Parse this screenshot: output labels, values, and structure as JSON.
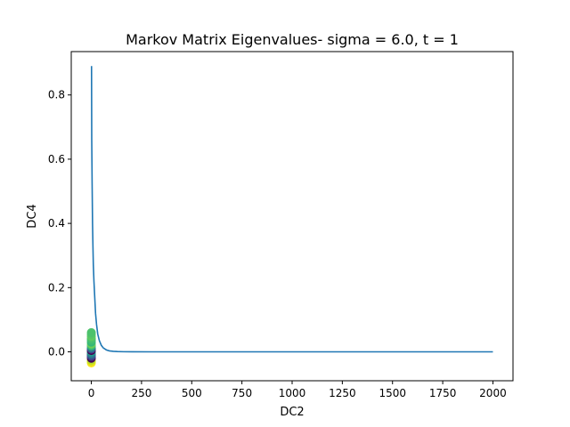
{
  "chart_data": {
    "type": "line",
    "title": "Markov Matrix Eigenvalues-  sigma = 6.0, t = 1",
    "xlabel": "DC2",
    "ylabel": "DC4",
    "xlim": [
      -100,
      2100
    ],
    "ylim": [
      -0.09,
      0.935
    ],
    "x_ticks": [
      0,
      250,
      500,
      750,
      1000,
      1250,
      1500,
      1750,
      2000
    ],
    "x_tick_labels": [
      "0",
      "250",
      "500",
      "750",
      "1000",
      "1250",
      "1500",
      "1750",
      "2000"
    ],
    "y_ticks": [
      0.0,
      0.2,
      0.4,
      0.6,
      0.8
    ],
    "y_tick_labels": [
      "0.0",
      "0.2",
      "0.4",
      "0.6",
      "0.8"
    ],
    "grid": false,
    "line_color": "#1f77b4",
    "series": [
      {
        "x": [
          1,
          2,
          4,
          6,
          8,
          10,
          13,
          17,
          21,
          26,
          32,
          40,
          50,
          60,
          75,
          90,
          110,
          130,
          160,
          200,
          300,
          500,
          1000,
          1500,
          2000
        ],
        "values": [
          0.89,
          0.66,
          0.52,
          0.4,
          0.33,
          0.27,
          0.22,
          0.17,
          0.12,
          0.085,
          0.055,
          0.035,
          0.02,
          0.012,
          0.006,
          0.003,
          0.0015,
          0.0008,
          0.0004,
          0.0002,
          0.0,
          0.0,
          0.0,
          0.0,
          0.0
        ]
      }
    ],
    "scatter": {
      "x": [
        0,
        0,
        0,
        0,
        0,
        0,
        0,
        0,
        0,
        0,
        0,
        0,
        0,
        0,
        0,
        0,
        0,
        0,
        0,
        0
      ],
      "values": [
        -0.035,
        -0.03,
        -0.025,
        -0.02,
        -0.015,
        -0.012,
        -0.008,
        -0.004,
        0.0,
        0.004,
        0.008,
        0.012,
        0.018,
        0.024,
        0.03,
        0.036,
        0.042,
        0.048,
        0.054,
        0.06
      ],
      "colors": [
        "#fde725",
        "#dde318",
        "#b5de2b",
        "#440154",
        "#482878",
        "#3e4989",
        "#31688e",
        "#26828e",
        "#1f9e89",
        "#440154",
        "#443983",
        "#2a788e",
        "#35b779",
        "#6ece58",
        "#35b779",
        "#3fbc73",
        "#4ac16d",
        "#5ec962",
        "#55c667",
        "#4cc26c"
      ]
    }
  }
}
